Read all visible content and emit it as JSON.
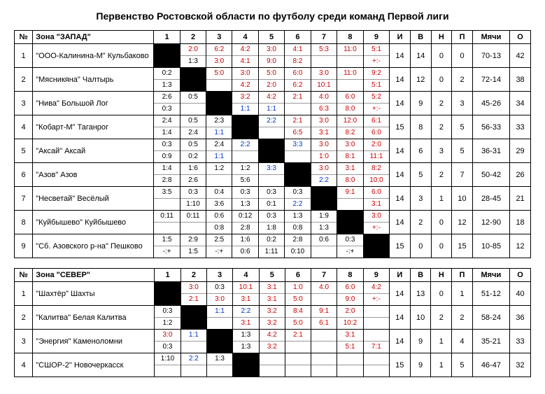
{
  "title": "Первенство Ростовской области по футболу среди команд Первой лиги",
  "columns": {
    "num": "№",
    "zone": "Зона",
    "games_header_cols": [
      "1",
      "2",
      "3",
      "4",
      "5",
      "6",
      "7",
      "8",
      "9"
    ],
    "i": "И",
    "v": "В",
    "n": "Н",
    "p": "П",
    "goals": "Мячи",
    "o": "О"
  },
  "tables": [
    {
      "zone": "\"ЗАПАД\"",
      "rows": [
        {
          "n": 1,
          "team": "\"ООО-Калинина-М\" Кульбаково",
          "cells": [
            {
              "black": true
            },
            {
              "t": "2:0",
              "tc": "red",
              "b": "1:3",
              "bc": "blk"
            },
            {
              "t": "6:2",
              "tc": "red",
              "b": "3:0",
              "bc": "red"
            },
            {
              "t": "4:2",
              "tc": "red",
              "b": "4:1",
              "bc": "red"
            },
            {
              "t": "3:0",
              "tc": "red",
              "b": "9:0",
              "bc": "red"
            },
            {
              "t": "4:1",
              "tc": "red",
              "b": "8:2",
              "bc": "red"
            },
            {
              "t": "5:3",
              "tc": "red",
              "b": "",
              "bc": "blk"
            },
            {
              "t": "11:0",
              "tc": "red",
              "b": "",
              "bc": "blk"
            },
            {
              "t": "5:1",
              "tc": "red",
              "b": "+:-",
              "bc": "red"
            }
          ],
          "i": 14,
          "v": 14,
          "nn": 0,
          "p": 0,
          "goals": "70-13",
          "o": 42
        },
        {
          "n": 2,
          "team": "\"Мясникяна\" Чалтырь",
          "cells": [
            {
              "t": "0:2",
              "tc": "blk",
              "b": "1:3",
              "bc": "blk"
            },
            {
              "black": true
            },
            {
              "t": "5:0",
              "tc": "red",
              "b": "",
              "bc": "blk"
            },
            {
              "t": "3:0",
              "tc": "red",
              "b": "4:2",
              "bc": "red"
            },
            {
              "t": "5:0",
              "tc": "red",
              "b": "2:0",
              "bc": "red"
            },
            {
              "t": "6:0",
              "tc": "red",
              "b": "6:2",
              "bc": "red"
            },
            {
              "t": "3:0",
              "tc": "red",
              "b": "10:1",
              "bc": "red"
            },
            {
              "t": "11:0",
              "tc": "red",
              "b": "",
              "bc": "blk"
            },
            {
              "t": "9:2",
              "tc": "red",
              "b": "5:1",
              "bc": "red"
            }
          ],
          "i": 14,
          "v": 12,
          "nn": 0,
          "p": 2,
          "goals": "72-14",
          "o": 38
        },
        {
          "n": 3,
          "team": "\"Нива\" Большой Лог",
          "cells": [
            {
              "t": "2:6",
              "tc": "blk",
              "b": "0:3",
              "bc": "blk"
            },
            {
              "t": "0:5",
              "tc": "blk",
              "b": "",
              "bc": "blk"
            },
            {
              "black": true
            },
            {
              "t": "3:2",
              "tc": "red",
              "b": "1:1",
              "bc": "blue"
            },
            {
              "t": "4:2",
              "tc": "red",
              "b": "1:1",
              "bc": "blue"
            },
            {
              "t": "2:1",
              "tc": "red",
              "b": "",
              "bc": "blk"
            },
            {
              "t": "4:0",
              "tc": "red",
              "b": "6:3",
              "bc": "red"
            },
            {
              "t": "6:0",
              "tc": "red",
              "b": "8:0",
              "bc": "red"
            },
            {
              "t": "5:2",
              "tc": "red",
              "b": "+:-",
              "bc": "red"
            }
          ],
          "i": 14,
          "v": 9,
          "nn": 2,
          "p": 3,
          "goals": "45-26",
          "o": 34
        },
        {
          "n": 4,
          "team": "\"Кобарт-М\" Таганрог",
          "cells": [
            {
              "t": "2:4",
              "tc": "blk",
              "b": "1:4",
              "bc": "blk"
            },
            {
              "t": "0:5",
              "tc": "blk",
              "b": "2:4",
              "bc": "blk"
            },
            {
              "t": "2:3",
              "tc": "blk",
              "b": "1:1",
              "bc": "blue"
            },
            {
              "black": true
            },
            {
              "t": "2:2",
              "tc": "blue",
              "b": "",
              "bc": "blk"
            },
            {
              "t": "2:1",
              "tc": "red",
              "b": "6:5",
              "bc": "red"
            },
            {
              "t": "3:0",
              "tc": "red",
              "b": "3:1",
              "bc": "red"
            },
            {
              "t": "12:0",
              "tc": "red",
              "b": "8:2",
              "bc": "red"
            },
            {
              "t": "6:1",
              "tc": "red",
              "b": "6:0",
              "bc": "red"
            }
          ],
          "i": 15,
          "v": 8,
          "nn": 2,
          "p": 5,
          "goals": "56-33",
          "o": 33
        },
        {
          "n": 5,
          "team": "\"Аксай\" Аксай",
          "cells": [
            {
              "t": "0:3",
              "tc": "blk",
              "b": "0:9",
              "bc": "blk"
            },
            {
              "t": "0:5",
              "tc": "blk",
              "b": "0:2",
              "bc": "blk"
            },
            {
              "t": "2:4",
              "tc": "blk",
              "b": "1:1",
              "bc": "blue"
            },
            {
              "t": "2:2",
              "tc": "blue",
              "b": "",
              "bc": "blk"
            },
            {
              "black": true
            },
            {
              "t": "3:3",
              "tc": "blue",
              "b": "",
              "bc": "blk"
            },
            {
              "t": "3:0",
              "tc": "red",
              "b": "1:0",
              "bc": "red"
            },
            {
              "t": "3:0",
              "tc": "red",
              "b": "8:1",
              "bc": "red"
            },
            {
              "t": "2:0",
              "tc": "red",
              "b": "11:1",
              "bc": "red"
            }
          ],
          "i": 14,
          "v": 6,
          "nn": 3,
          "p": 5,
          "goals": "36-31",
          "o": 29
        },
        {
          "n": 6,
          "team": "\"Азов\" Азов",
          "cells": [
            {
              "t": "1:4",
              "tc": "blk",
              "b": "2:8",
              "bc": "blk"
            },
            {
              "t": "1:6",
              "tc": "blk",
              "b": "2:6",
              "bc": "blk"
            },
            {
              "t": "1:2",
              "tc": "blk",
              "b": "",
              "bc": "blk"
            },
            {
              "t": "1:2",
              "tc": "blk",
              "b": "5:6",
              "bc": "blk"
            },
            {
              "t": "3:3",
              "tc": "blue",
              "b": "",
              "bc": "blk"
            },
            {
              "black": true
            },
            {
              "t": "3:0",
              "tc": "red",
              "b": "2:2",
              "bc": "blue"
            },
            {
              "t": "3:1",
              "tc": "red",
              "b": "8:0",
              "bc": "red"
            },
            {
              "t": "8:2",
              "tc": "red",
              "b": "10:0",
              "bc": "red"
            }
          ],
          "i": 14,
          "v": 5,
          "nn": 2,
          "p": 7,
          "goals": "50-42",
          "o": 26
        },
        {
          "n": 7,
          "team": "\"Несветай\" Весёлый",
          "cells": [
            {
              "t": "3:5",
              "tc": "blk",
              "b": "",
              "bc": "blk"
            },
            {
              "t": "0:3",
              "tc": "blk",
              "b": "1:10",
              "bc": "blk"
            },
            {
              "t": "0:4",
              "tc": "blk",
              "b": "3:6",
              "bc": "blk"
            },
            {
              "t": "0:3",
              "tc": "blk",
              "b": "1:3",
              "bc": "blk"
            },
            {
              "t": "0:3",
              "tc": "blk",
              "b": "0:1",
              "bc": "blk"
            },
            {
              "t": "0:3",
              "tc": "blk",
              "b": "2:2",
              "bc": "blue"
            },
            {
              "black": true
            },
            {
              "t": "9:1",
              "tc": "red",
              "b": "",
              "bc": "blk"
            },
            {
              "t": "6:0",
              "tc": "red",
              "b": "3:1",
              "bc": "red"
            }
          ],
          "i": 14,
          "v": 3,
          "nn": 1,
          "p": 10,
          "goals": "28-45",
          "o": 21
        },
        {
          "n": 8,
          "team": "\"Куйбышево\" Куйбышево",
          "cells": [
            {
              "t": "0:11",
              "tc": "blk",
              "b": "",
              "bc": "blk"
            },
            {
              "t": "0:11",
              "tc": "blk",
              "b": "",
              "bc": "blk"
            },
            {
              "t": "0:6",
              "tc": "blk",
              "b": "0:8",
              "bc": "blk"
            },
            {
              "t": "0:12",
              "tc": "blk",
              "b": "2:8",
              "bc": "blk"
            },
            {
              "t": "0:3",
              "tc": "blk",
              "b": "1:8",
              "bc": "blk"
            },
            {
              "t": "1:3",
              "tc": "blk",
              "b": "0:8",
              "bc": "blk"
            },
            {
              "t": "1:9",
              "tc": "blk",
              "b": "1:3",
              "bc": "blk"
            },
            {
              "black": true
            },
            {
              "t": "3:0",
              "tc": "red",
              "b": "+:-",
              "bc": "red"
            }
          ],
          "i": 14,
          "v": 2,
          "nn": 0,
          "p": 12,
          "goals": "12-90",
          "o": 18
        },
        {
          "n": 9,
          "team": "\"Сб. Азовского р-на\" Пешково",
          "cells": [
            {
              "t": "1:5",
              "tc": "blk",
              "b": "-:+",
              "bc": "blk"
            },
            {
              "t": "2:9",
              "tc": "blk",
              "b": "1:5",
              "bc": "blk"
            },
            {
              "t": "2:5",
              "tc": "blk",
              "b": "-:+",
              "bc": "blk"
            },
            {
              "t": "1:6",
              "tc": "blk",
              "b": "0:6",
              "bc": "blk"
            },
            {
              "t": "0:2",
              "tc": "blk",
              "b": "1:11",
              "bc": "blk"
            },
            {
              "t": "2:8",
              "tc": "blk",
              "b": "0:10",
              "bc": "blk"
            },
            {
              "t": "0:6",
              "tc": "blk",
              "b": "",
              "bc": "blk"
            },
            {
              "t": "0:3",
              "tc": "blk",
              "b": "-:+",
              "bc": "blk"
            },
            {
              "black": true
            }
          ],
          "i": 15,
          "v": 0,
          "nn": 0,
          "p": 15,
          "goals": "10-85",
          "o": 12
        }
      ]
    },
    {
      "zone": "\"СЕВЕР\"",
      "rows": [
        {
          "n": 1,
          "team": "\"Шахтёр\" Шахты",
          "cells": [
            {
              "black": true
            },
            {
              "t": "3:0",
              "tc": "red",
              "b": "2:1",
              "bc": "red"
            },
            {
              "t": "0:3",
              "tc": "blk",
              "b": "3:0",
              "bc": "red"
            },
            {
              "t": "10:1",
              "tc": "red",
              "b": "3:1",
              "bc": "red"
            },
            {
              "t": "3:1",
              "tc": "red",
              "b": "3:1",
              "bc": "red"
            },
            {
              "t": "1:0",
              "tc": "red",
              "b": "5:0",
              "bc": "red"
            },
            {
              "t": "4:0",
              "tc": "red",
              "b": "",
              "bc": "blk"
            },
            {
              "t": "6:0",
              "tc": "red",
              "b": "9:0",
              "bc": "red"
            },
            {
              "t": "4:2",
              "tc": "red",
              "b": "+:-",
              "bc": "red"
            }
          ],
          "i": 14,
          "v": 13,
          "nn": 0,
          "p": 1,
          "goals": "51-12",
          "o": 40
        },
        {
          "n": 2,
          "team": "\"Калитва\" Белая Калитва",
          "cells": [
            {
              "t": "0:3",
              "tc": "blk",
              "b": "1:2",
              "bc": "blk"
            },
            {
              "black": true
            },
            {
              "t": "1:1",
              "tc": "blue",
              "b": "",
              "bc": "blk"
            },
            {
              "t": "2:2",
              "tc": "blue",
              "b": "3:1",
              "bc": "red"
            },
            {
              "t": "3:2",
              "tc": "red",
              "b": "3:2",
              "bc": "red"
            },
            {
              "t": "8:4",
              "tc": "red",
              "b": "5:0",
              "bc": "red"
            },
            {
              "t": "9:1",
              "tc": "red",
              "b": "6:1",
              "bc": "red"
            },
            {
              "t": "2:0",
              "tc": "red",
              "b": "10:2",
              "bc": "red"
            },
            {
              "t": "",
              "tc": "blk",
              "b": "",
              "bc": "blk"
            }
          ],
          "i": 14,
          "v": 10,
          "nn": 2,
          "p": 2,
          "goals": "58-24",
          "o": 36
        },
        {
          "n": 3,
          "team": "\"Энергия\" Каменоломни",
          "cells": [
            {
              "t": "3:0",
              "tc": "red",
              "b": "0:3",
              "bc": "blk"
            },
            {
              "t": "1:1",
              "tc": "blue",
              "b": "",
              "bc": "blk"
            },
            {
              "black": true
            },
            {
              "t": "1:3",
              "tc": "blk",
              "b": "1:3",
              "bc": "blk"
            },
            {
              "t": "4:2",
              "tc": "red",
              "b": "3:2",
              "bc": "red"
            },
            {
              "t": "2:1",
              "tc": "red",
              "b": "",
              "bc": "blk"
            },
            {
              "t": "",
              "tc": "blk",
              "b": "",
              "bc": "blk"
            },
            {
              "t": "3:1",
              "tc": "red",
              "b": "5:1",
              "bc": "red"
            },
            {
              "t": "",
              "tc": "blk",
              "b": "7:1",
              "bc": "red"
            }
          ],
          "i": 14,
          "v": 9,
          "nn": 1,
          "p": 4,
          "goals": "35-21",
          "o": 33
        },
        {
          "n": 4,
          "team": "\"СШОР-2\" Новочеркасск",
          "cells": [
            {
              "t": "1:10",
              "tc": "blk",
              "b": "",
              "bc": "blk"
            },
            {
              "t": "2:2",
              "tc": "blue",
              "b": "",
              "bc": "blk"
            },
            {
              "t": "1:3",
              "tc": "blk",
              "b": "",
              "bc": "blk"
            },
            {
              "black": true
            },
            {
              "t": "",
              "tc": "blk",
              "b": "",
              "bc": "blk"
            },
            {
              "t": "",
              "tc": "blk",
              "b": "",
              "bc": "blk"
            },
            {
              "t": "",
              "tc": "blk",
              "b": "",
              "bc": "blk"
            },
            {
              "t": "",
              "tc": "blk",
              "b": "",
              "bc": "blk"
            },
            {
              "t": "",
              "tc": "blk",
              "b": "",
              "bc": "blk"
            }
          ],
          "i": 15,
          "v": 9,
          "nn": 1,
          "p": 5,
          "goals": "46-47",
          "o": 32
        }
      ]
    }
  ]
}
